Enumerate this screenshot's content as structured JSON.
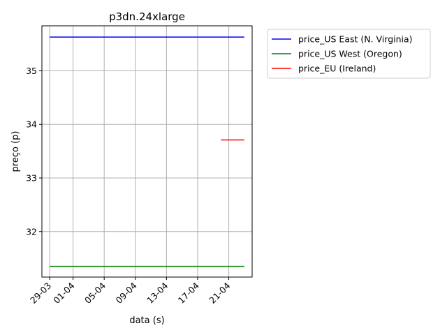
{
  "chart_data": {
    "type": "line",
    "title": "p3dn.24xlarge",
    "xlabel": "data (s)",
    "ylabel": "preço (p)",
    "x_tick_labels": [
      "29-03",
      "01-04",
      "05-04",
      "09-04",
      "13-04",
      "17-04",
      "21-04"
    ],
    "x_ticks": [
      "2024-03-29",
      "2024-04-01",
      "2024-04-05",
      "2024-04-09",
      "2024-04-13",
      "2024-04-17",
      "2024-04-21"
    ],
    "xlim": [
      "2024-03-28",
      "2024-04-24"
    ],
    "y_ticks": [
      32,
      33,
      34,
      35
    ],
    "ylim": [
      31.15,
      35.84
    ],
    "grid": true,
    "legend_position": "outside right, top",
    "series": [
      {
        "name": "price_US East (N. Virginia)",
        "color": "#0000ff",
        "x": [
          "2024-03-29",
          "2024-04-23"
        ],
        "y": [
          35.63,
          35.63
        ]
      },
      {
        "name": "price_US West (Oregon)",
        "color": "#008000",
        "x": [
          "2024-03-29",
          "2024-04-23"
        ],
        "y": [
          31.35,
          31.35
        ]
      },
      {
        "name": "price_EU (Ireland)",
        "color": "#ff0000",
        "x": [
          "2024-04-20",
          "2024-04-23"
        ],
        "y": [
          33.71,
          33.71
        ]
      }
    ]
  }
}
